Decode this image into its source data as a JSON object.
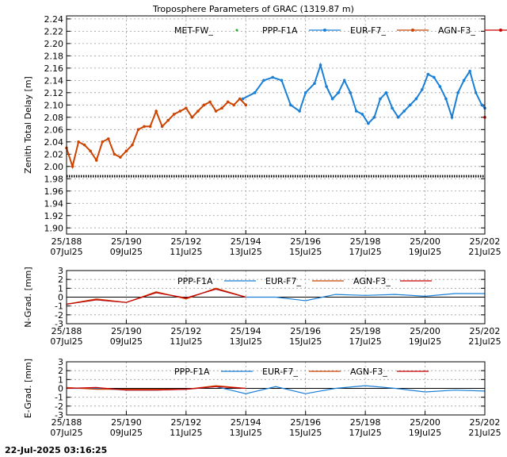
{
  "footer": {
    "timestamp": "22-Jul-2025 03:16:25"
  },
  "colors": {
    "met": "#22aa22",
    "ppp": "#1a7fd6",
    "eur": "#cc4400",
    "agn": "#cc0000",
    "grid": "#9a9a9a"
  },
  "x_ticks": [
    {
      "t": 188,
      "l1": "25/188",
      "l2": "07Jul25"
    },
    {
      "t": 190,
      "l1": "25/190",
      "l2": "09Jul25"
    },
    {
      "t": 192,
      "l1": "25/192",
      "l2": "11Jul25"
    },
    {
      "t": 194,
      "l1": "25/194",
      "l2": "13Jul25"
    },
    {
      "t": 196,
      "l1": "25/196",
      "l2": "15Jul25"
    },
    {
      "t": 198,
      "l1": "25/198",
      "l2": "17Jul25"
    },
    {
      "t": 200,
      "l1": "25/200",
      "l2": "19Jul25"
    },
    {
      "t": 202,
      "l1": "25/202",
      "l2": "21Jul25"
    }
  ],
  "chart_data": [
    {
      "type": "line",
      "title": "Troposphere Parameters of GRAC (1319.87 m)",
      "ylabel": "Zenith Total Delay [m]",
      "xlabel": "",
      "xlim": [
        188,
        202
      ],
      "ylim": [
        1.89,
        2.245
      ],
      "yticks": [
        "2.24",
        "2.22",
        "2.20",
        "2.18",
        "2.16",
        "2.14",
        "2.12",
        "2.10",
        "2.08",
        "2.06",
        "2.04",
        "2.02",
        "2.00",
        "1.98",
        "1.96",
        "1.94",
        "1.92",
        "1.90"
      ],
      "grid": true,
      "legend_position": "top",
      "series": [
        {
          "name": "MET-FW_",
          "marker": "dot",
          "x": [
            188.0,
            202.0
          ],
          "y": [
            1.984,
            1.984
          ]
        },
        {
          "name": "PPP-F1A",
          "x": [
            193.9,
            194.3,
            194.6,
            194.9,
            195.2,
            195.5,
            195.8,
            196.0,
            196.3,
            196.5,
            196.7,
            196.9,
            197.1,
            197.3,
            197.5,
            197.7,
            197.9,
            198.1,
            198.3,
            198.5,
            198.7,
            198.9,
            199.1,
            199.3,
            199.5,
            199.7,
            199.9,
            200.1,
            200.3,
            200.5,
            200.7,
            200.9,
            201.1,
            201.3,
            201.5,
            201.7,
            201.9,
            202.0
          ],
          "y": [
            2.11,
            2.12,
            2.14,
            2.145,
            2.14,
            2.1,
            2.09,
            2.12,
            2.135,
            2.165,
            2.13,
            2.11,
            2.12,
            2.14,
            2.12,
            2.09,
            2.085,
            2.07,
            2.08,
            2.11,
            2.12,
            2.095,
            2.08,
            2.09,
            2.1,
            2.11,
            2.125,
            2.15,
            2.145,
            2.13,
            2.11,
            2.08,
            2.12,
            2.14,
            2.155,
            2.12,
            2.1,
            2.095
          ]
        },
        {
          "name": "EUR-F7_",
          "x": [
            188.0,
            188.2,
            188.4,
            188.6,
            188.8,
            189.0,
            189.2,
            189.4,
            189.6,
            189.8,
            190.0,
            190.2,
            190.4,
            190.6,
            190.8,
            191.0,
            191.2,
            191.4,
            191.6,
            191.8,
            192.0,
            192.2,
            192.4,
            192.6,
            192.8,
            193.0,
            193.2,
            193.4,
            193.6,
            193.8,
            194.0
          ],
          "y": [
            2.03,
            2.0,
            2.04,
            2.035,
            2.025,
            2.01,
            2.04,
            2.045,
            2.02,
            2.015,
            2.025,
            2.035,
            2.06,
            2.065,
            2.065,
            2.09,
            2.065,
            2.075,
            2.085,
            2.09,
            2.095,
            2.08,
            2.09,
            2.1,
            2.105,
            2.09,
            2.095,
            2.105,
            2.1,
            2.11,
            2.1
          ]
        },
        {
          "name": "AGN-F3_",
          "x": [
            202.0
          ],
          "y": [
            2.08
          ]
        }
      ]
    },
    {
      "type": "line",
      "title": "",
      "ylabel": "N-Grad. [mm]",
      "xlabel": "",
      "xlim": [
        188,
        202
      ],
      "ylim": [
        -3,
        3
      ],
      "yticks": [
        "3",
        "2",
        "1",
        "0",
        "-1",
        "-2",
        "-3"
      ],
      "grid": true,
      "legend_position": "top",
      "series": [
        {
          "name": "PPP-F1A",
          "x": [
            188,
            189,
            190,
            191,
            192,
            193,
            194,
            195,
            196,
            197,
            198,
            199,
            200,
            201,
            202
          ],
          "y": [
            -0.8,
            -0.3,
            -0.6,
            0.5,
            -0.1,
            0.9,
            0.0,
            0.0,
            -0.4,
            0.3,
            0.2,
            0.3,
            0.1,
            0.4,
            0.4
          ]
        },
        {
          "name": "EUR-F7_",
          "x": [
            188,
            189,
            190,
            191,
            192,
            193,
            194
          ],
          "y": [
            -0.8,
            -0.2,
            -0.6,
            0.6,
            -0.2,
            1.0,
            0.0
          ]
        },
        {
          "name": "AGN-F3_",
          "x": [
            188,
            189,
            190,
            191,
            192,
            193,
            194
          ],
          "y": [
            -0.8,
            -0.3,
            -0.6,
            0.5,
            -0.1,
            0.9,
            0.0
          ]
        }
      ]
    },
    {
      "type": "line",
      "title": "",
      "ylabel": "E-Grad. [mm]",
      "xlabel": "",
      "xlim": [
        188,
        202
      ],
      "ylim": [
        -3,
        3
      ],
      "yticks": [
        "3",
        "2",
        "1",
        "0",
        "-1",
        "-2",
        "-3"
      ],
      "grid": true,
      "legend_position": "top",
      "series": [
        {
          "name": "PPP-F1A",
          "x": [
            188,
            189,
            190,
            191,
            192,
            193,
            194,
            195,
            196,
            197,
            198,
            199,
            200,
            201,
            202
          ],
          "y": [
            0.0,
            0.0,
            -0.2,
            -0.2,
            -0.1,
            0.2,
            -0.6,
            0.2,
            -0.6,
            0.0,
            0.3,
            0.0,
            -0.4,
            -0.2,
            -0.3
          ]
        },
        {
          "name": "EUR-F7_",
          "x": [
            188,
            189,
            190,
            191,
            192,
            193,
            194
          ],
          "y": [
            0.1,
            -0.1,
            -0.1,
            -0.1,
            -0.1,
            0.3,
            0.0
          ]
        },
        {
          "name": "AGN-F3_",
          "x": [
            188,
            189,
            190,
            191,
            192,
            193,
            194
          ],
          "y": [
            0.0,
            0.1,
            -0.2,
            -0.2,
            -0.1,
            0.2,
            0.0
          ]
        }
      ]
    }
  ]
}
